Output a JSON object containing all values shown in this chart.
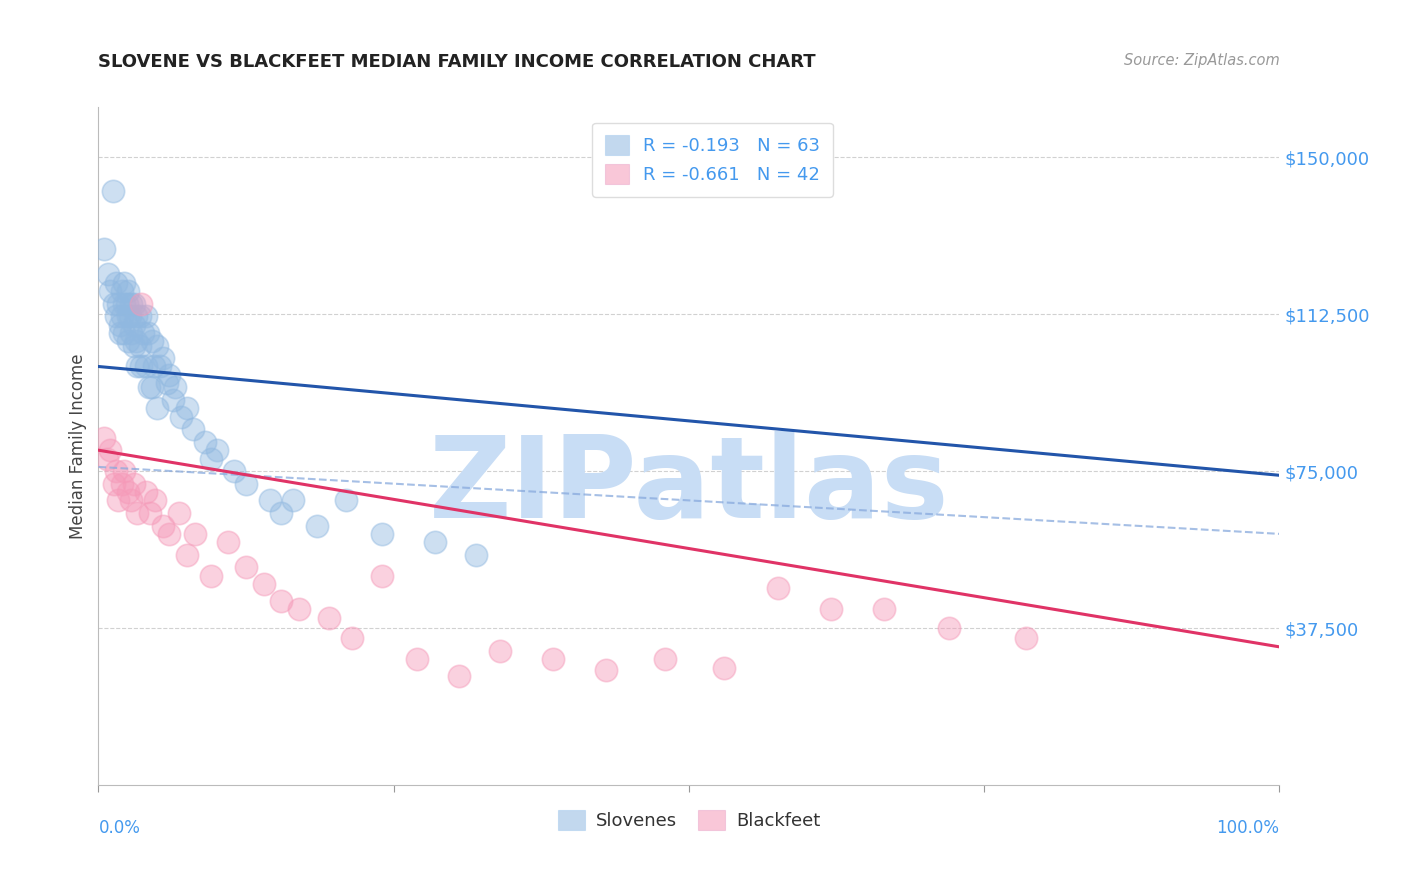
{
  "title": "SLOVENE VS BLACKFEET MEDIAN FAMILY INCOME CORRELATION CHART",
  "source": "Source: ZipAtlas.com",
  "ylabel": "Median Family Income",
  "y_ticks": [
    37500,
    75000,
    112500,
    150000
  ],
  "y_tick_labels": [
    "$37,500",
    "$75,000",
    "$112,500",
    "$150,000"
  ],
  "xlim": [
    0,
    1
  ],
  "ylim": [
    0,
    162000
  ],
  "slovene_color": "#90b8e0",
  "blackfeet_color": "#f599b8",
  "slovene_line_color": "#2255aa",
  "blackfeet_line_color": "#e03366",
  "dashed_line_color": "#88aadd",
  "watermark": "ZIPatlas",
  "watermark_color": "#c8ddf5",
  "r_slovene": -0.193,
  "r_blackfeet": -0.661,
  "n_slovene": 63,
  "n_blackfeet": 42,
  "legend_label_slovenes": "Slovenes",
  "legend_label_blackfeet": "Blackfeet",
  "slovene_line_x0": 0,
  "slovene_line_y0": 100000,
  "slovene_line_x1": 1.0,
  "slovene_line_y1": 74000,
  "blackfeet_line_x0": 0,
  "blackfeet_line_y0": 80000,
  "blackfeet_line_x1": 1.0,
  "blackfeet_line_y1": 33000,
  "dashed_line_x0": 0.0,
  "dashed_line_y0": 76000,
  "dashed_line_x1": 1.0,
  "dashed_line_y1": 60000,
  "slovene_x": [
    0.005,
    0.008,
    0.01,
    0.012,
    0.013,
    0.015,
    0.015,
    0.017,
    0.018,
    0.018,
    0.02,
    0.02,
    0.022,
    0.022,
    0.022,
    0.024,
    0.025,
    0.025,
    0.025,
    0.027,
    0.028,
    0.028,
    0.03,
    0.03,
    0.03,
    0.032,
    0.032,
    0.033,
    0.035,
    0.035,
    0.036,
    0.038,
    0.04,
    0.04,
    0.042,
    0.043,
    0.045,
    0.045,
    0.047,
    0.05,
    0.05,
    0.052,
    0.055,
    0.058,
    0.06,
    0.063,
    0.065,
    0.07,
    0.075,
    0.08,
    0.09,
    0.095,
    0.1,
    0.115,
    0.125,
    0.145,
    0.155,
    0.165,
    0.185,
    0.21,
    0.24,
    0.285,
    0.32
  ],
  "slovene_y": [
    128000,
    122000,
    118000,
    142000,
    115000,
    120000,
    112000,
    115000,
    110000,
    108000,
    118000,
    112000,
    120000,
    115000,
    108000,
    115000,
    118000,
    112000,
    106000,
    112000,
    115000,
    108000,
    115000,
    110000,
    105000,
    112000,
    106000,
    100000,
    112000,
    105000,
    100000,
    108000,
    112000,
    100000,
    108000,
    95000,
    106000,
    95000,
    100000,
    105000,
    90000,
    100000,
    102000,
    96000,
    98000,
    92000,
    95000,
    88000,
    90000,
    85000,
    82000,
    78000,
    80000,
    75000,
    72000,
    68000,
    65000,
    68000,
    62000,
    68000,
    60000,
    58000,
    55000
  ],
  "blackfeet_x": [
    0.005,
    0.007,
    0.01,
    0.013,
    0.015,
    0.017,
    0.02,
    0.022,
    0.025,
    0.028,
    0.03,
    0.033,
    0.036,
    0.04,
    0.044,
    0.048,
    0.055,
    0.06,
    0.068,
    0.075,
    0.082,
    0.095,
    0.11,
    0.125,
    0.14,
    0.155,
    0.17,
    0.195,
    0.215,
    0.24,
    0.27,
    0.305,
    0.34,
    0.385,
    0.43,
    0.48,
    0.53,
    0.575,
    0.62,
    0.665,
    0.72,
    0.785
  ],
  "blackfeet_y": [
    83000,
    78000,
    80000,
    72000,
    75000,
    68000,
    72000,
    75000,
    70000,
    68000,
    72000,
    65000,
    115000,
    70000,
    65000,
    68000,
    62000,
    60000,
    65000,
    55000,
    60000,
    50000,
    58000,
    52000,
    48000,
    44000,
    42000,
    40000,
    35000,
    50000,
    30000,
    26000,
    32000,
    30000,
    27500,
    30000,
    28000,
    47000,
    42000,
    42000,
    37500,
    35000
  ]
}
